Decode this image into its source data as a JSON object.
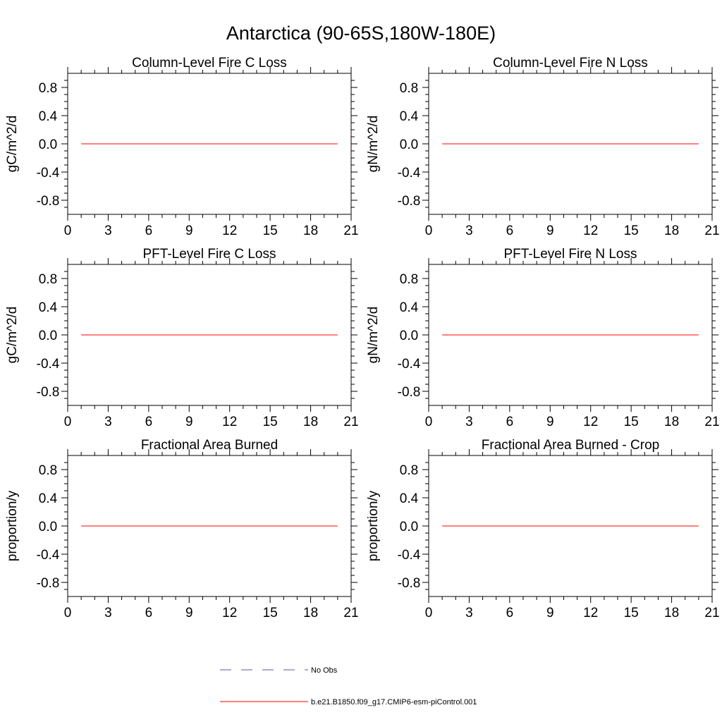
{
  "figure": {
    "title": "Antarctica (90-65S,180W-180E)"
  },
  "legend": {
    "placement": "bottom-center",
    "entries": [
      {
        "label": "No Obs",
        "color": "#5a5aa0",
        "style": "dashed"
      },
      {
        "label": "b.e21.B1850.f09_g17.CMIP6-esm-piControl.001",
        "color": "#ff0000",
        "style": "solid"
      }
    ]
  },
  "chart_data": [
    {
      "type": "line",
      "title": "Column-Level Fire C Loss",
      "ylabel": "gC/m^2/d",
      "xlim": [
        0,
        21
      ],
      "ylim": [
        -1,
        1
      ],
      "xticks": [
        "0",
        "3",
        "6",
        "9",
        "12",
        "15",
        "18",
        "21"
      ],
      "yticks": [
        "0.8",
        "0.4",
        "0.0",
        "-0.4",
        "-0.8"
      ],
      "grid": false,
      "series": [
        {
          "name": "b.e21.B1850.f09_g17.CMIP6-esm-piControl.001",
          "color": "#ff0000",
          "x": [
            1,
            20
          ],
          "y": [
            0,
            0
          ]
        }
      ]
    },
    {
      "type": "line",
      "title": "Column-Level Fire N Loss",
      "ylabel": "gN/m^2/d",
      "xlim": [
        0,
        21
      ],
      "ylim": [
        -1,
        1
      ],
      "xticks": [
        "0",
        "3",
        "6",
        "9",
        "12",
        "15",
        "18",
        "21"
      ],
      "yticks": [
        "0.8",
        "0.4",
        "0.0",
        "-0.4",
        "-0.8"
      ],
      "grid": false,
      "series": [
        {
          "name": "b.e21.B1850.f09_g17.CMIP6-esm-piControl.001",
          "color": "#ff0000",
          "x": [
            1,
            20
          ],
          "y": [
            0,
            0
          ]
        }
      ]
    },
    {
      "type": "line",
      "title": "PFT-Level Fire C Loss",
      "ylabel": "gC/m^2/d",
      "xlim": [
        0,
        21
      ],
      "ylim": [
        -1,
        1
      ],
      "xticks": [
        "0",
        "3",
        "6",
        "9",
        "12",
        "15",
        "18",
        "21"
      ],
      "yticks": [
        "0.8",
        "0.4",
        "0.0",
        "-0.4",
        "-0.8"
      ],
      "grid": false,
      "series": [
        {
          "name": "b.e21.B1850.f09_g17.CMIP6-esm-piControl.001",
          "color": "#ff0000",
          "x": [
            1,
            20
          ],
          "y": [
            0,
            0
          ]
        }
      ]
    },
    {
      "type": "line",
      "title": "PFT-Level Fire N Loss",
      "ylabel": "gN/m^2/d",
      "xlim": [
        0,
        21
      ],
      "ylim": [
        -1,
        1
      ],
      "xticks": [
        "0",
        "3",
        "6",
        "9",
        "12",
        "15",
        "18",
        "21"
      ],
      "yticks": [
        "0.8",
        "0.4",
        "0.0",
        "-0.4",
        "-0.8"
      ],
      "grid": false,
      "series": [
        {
          "name": "b.e21.B1850.f09_g17.CMIP6-esm-piControl.001",
          "color": "#ff0000",
          "x": [
            1,
            20
          ],
          "y": [
            0,
            0
          ]
        }
      ]
    },
    {
      "type": "line",
      "title": "Fractional Area Burned",
      "ylabel": "proportion/y",
      "xlim": [
        0,
        21
      ],
      "ylim": [
        -1,
        1
      ],
      "xticks": [
        "0",
        "3",
        "6",
        "9",
        "12",
        "15",
        "18",
        "21"
      ],
      "yticks": [
        "0.8",
        "0.4",
        "0.0",
        "-0.4",
        "-0.8"
      ],
      "grid": false,
      "series": [
        {
          "name": "b.e21.B1850.f09_g17.CMIP6-esm-piControl.001",
          "color": "#ff0000",
          "x": [
            1,
            20
          ],
          "y": [
            0,
            0
          ]
        }
      ]
    },
    {
      "type": "line",
      "title": "Fractional Area Burned - Crop",
      "ylabel": "proportion/y",
      "xlim": [
        0,
        21
      ],
      "ylim": [
        -1,
        1
      ],
      "xticks": [
        "0",
        "3",
        "6",
        "9",
        "12",
        "15",
        "18",
        "21"
      ],
      "yticks": [
        "0.8",
        "0.4",
        "0.0",
        "-0.4",
        "-0.8"
      ],
      "grid": false,
      "series": [
        {
          "name": "b.e21.B1850.f09_g17.CMIP6-esm-piControl.001",
          "color": "#ff0000",
          "x": [
            1,
            20
          ],
          "y": [
            0,
            0
          ]
        }
      ]
    }
  ]
}
